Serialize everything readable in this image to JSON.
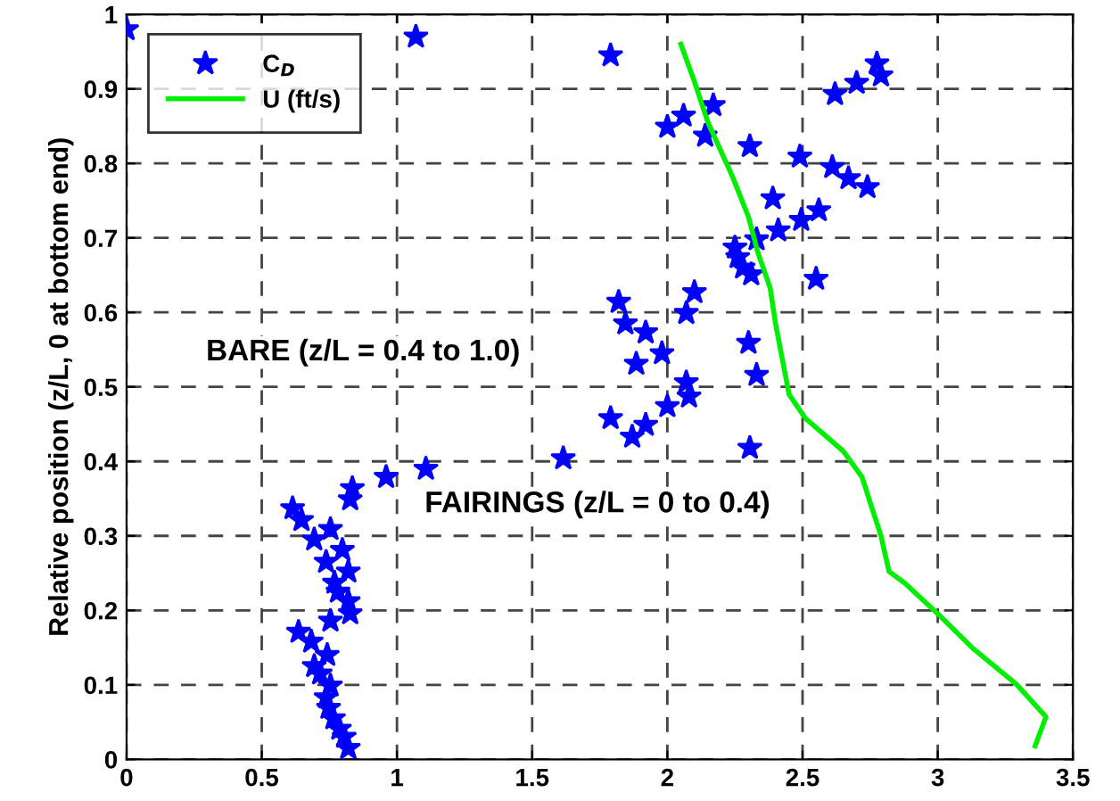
{
  "chart_data": {
    "type": "scatter",
    "ylabel": "Relative position (z/L, 0 at bottom end)",
    "annotations": [
      "BARE (z/L = 0.4 to 1.0)",
      "FAIRINGS (z/L = 0 to 0.4)"
    ],
    "xlim": [
      0,
      3.5
    ],
    "ylim": [
      0,
      1
    ],
    "xticks": [
      0,
      0.5,
      1,
      1.5,
      2,
      2.5,
      3,
      3.5
    ],
    "yticks": [
      0,
      0.1,
      0.2,
      0.3,
      0.4,
      0.5,
      0.6,
      0.7,
      0.8,
      0.9,
      1
    ],
    "grid": true,
    "legend": "top left",
    "series": [
      {
        "name": "C$_{D}$",
        "marker": "star",
        "color": "#0000ff",
        "x": [
          0,
          1.07,
          1.79,
          2.775,
          2.79,
          2.7,
          2.62,
          2.17,
          2.06,
          2.0,
          2.14,
          2.305,
          2.49,
          2.61,
          2.67,
          2.74,
          2.39,
          2.56,
          2.495,
          2.41,
          2.33,
          2.25,
          2.26,
          2.28,
          2.31,
          2.55,
          2.1,
          1.82,
          1.845,
          2.07,
          1.92,
          1.98,
          1.885,
          2.3,
          2.33,
          2.07,
          1.79,
          1.87,
          1.92,
          2.0,
          2.08,
          2.305,
          1.615,
          1.107,
          0.96,
          0.835,
          0.827,
          0.614,
          0.647,
          0.694,
          0.754,
          0.798,
          0.738,
          0.82,
          0.769,
          0.782,
          0.82,
          0.827,
          0.754,
          0.636,
          0.683,
          0.742,
          0.694,
          0.716,
          0.754,
          0.738,
          0.747,
          0.765,
          0.787,
          0.805,
          0.82
        ],
        "values": [
          0.98,
          0.97,
          0.945,
          0.934,
          0.918,
          0.908,
          0.893,
          0.878,
          0.864,
          0.849,
          0.837,
          0.823,
          0.809,
          0.795,
          0.78,
          0.768,
          0.753,
          0.737,
          0.724,
          0.71,
          0.698,
          0.687,
          0.674,
          0.66,
          0.651,
          0.645,
          0.627,
          0.614,
          0.585,
          0.599,
          0.573,
          0.545,
          0.531,
          0.559,
          0.516,
          0.506,
          0.458,
          0.433,
          0.449,
          0.474,
          0.487,
          0.418,
          0.404,
          0.39,
          0.379,
          0.364,
          0.349,
          0.337,
          0.321,
          0.295,
          0.309,
          0.281,
          0.265,
          0.252,
          0.237,
          0.225,
          0.212,
          0.196,
          0.186,
          0.171,
          0.158,
          0.14,
          0.125,
          0.115,
          0.099,
          0.083,
          0.069,
          0.055,
          0.041,
          0.03,
          0.015
        ]
      },
      {
        "name": "U (ft/s)",
        "type": "line",
        "marker": "none",
        "line_style": "solid",
        "color": "#00ee00",
        "x": [
          2.05,
          2.1,
          2.15,
          2.24,
          2.3,
          2.335,
          2.38,
          2.4,
          2.45,
          2.51,
          2.65,
          2.72,
          2.755,
          2.79,
          2.82,
          2.88,
          3.01,
          3.13,
          3.29,
          3.4,
          3.36
        ],
        "values": [
          0.96,
          0.91,
          0.855,
          0.783,
          0.728,
          0.68,
          0.633,
          0.585,
          0.49,
          0.458,
          0.414,
          0.379,
          0.339,
          0.3,
          0.252,
          0.236,
          0.192,
          0.149,
          0.101,
          0.057,
          0.018
        ]
      }
    ]
  }
}
